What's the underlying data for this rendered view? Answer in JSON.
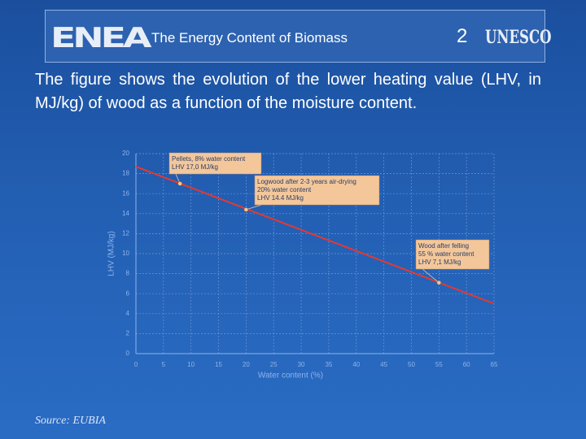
{
  "header": {
    "logo_left": "ENEA",
    "title": "The Energy Content of Biomass",
    "slide_number": 2,
    "logo_right": "UNESCO"
  },
  "body": "The figure shows the evolution of the lower heating value (LHV, in MJ/kg) of wood as a function of the moisture content.",
  "source": "Source: EUBIA",
  "chart_data": {
    "type": "line",
    "x_label": "Water content (%)",
    "y_label": "LHV (MJ/kg)",
    "series": [
      {
        "color": "#e8382e",
        "x": [
          0,
          65
        ],
        "values": [
          18.7,
          5.0
        ]
      }
    ],
    "markers": {
      "color": "#f3c79a",
      "x": [
        8,
        20,
        55
      ],
      "values": [
        17.0,
        14.4,
        7.1
      ]
    },
    "annotations": [
      {
        "lines": [
          "Pellets, 8% water content",
          "LHV 17,0 MJ/kg"
        ]
      },
      {
        "lines": [
          "Logwood after 2-3 years air-drying",
          "20% water content",
          "LHV 14.4 MJ/kg"
        ]
      },
      {
        "lines": [
          "Wood after felling",
          "55 % water content",
          "LHV 7,1 MJ/kg"
        ]
      }
    ],
    "xlim": [
      0,
      65
    ],
    "xticks": [
      0,
      5,
      10,
      15,
      20,
      25,
      30,
      35,
      40,
      45,
      50,
      55,
      60,
      65
    ],
    "ylim": [
      0,
      20
    ],
    "yticks": [
      0,
      2,
      4,
      6,
      8,
      10,
      12,
      14,
      16,
      18,
      20
    ],
    "grid": true
  }
}
